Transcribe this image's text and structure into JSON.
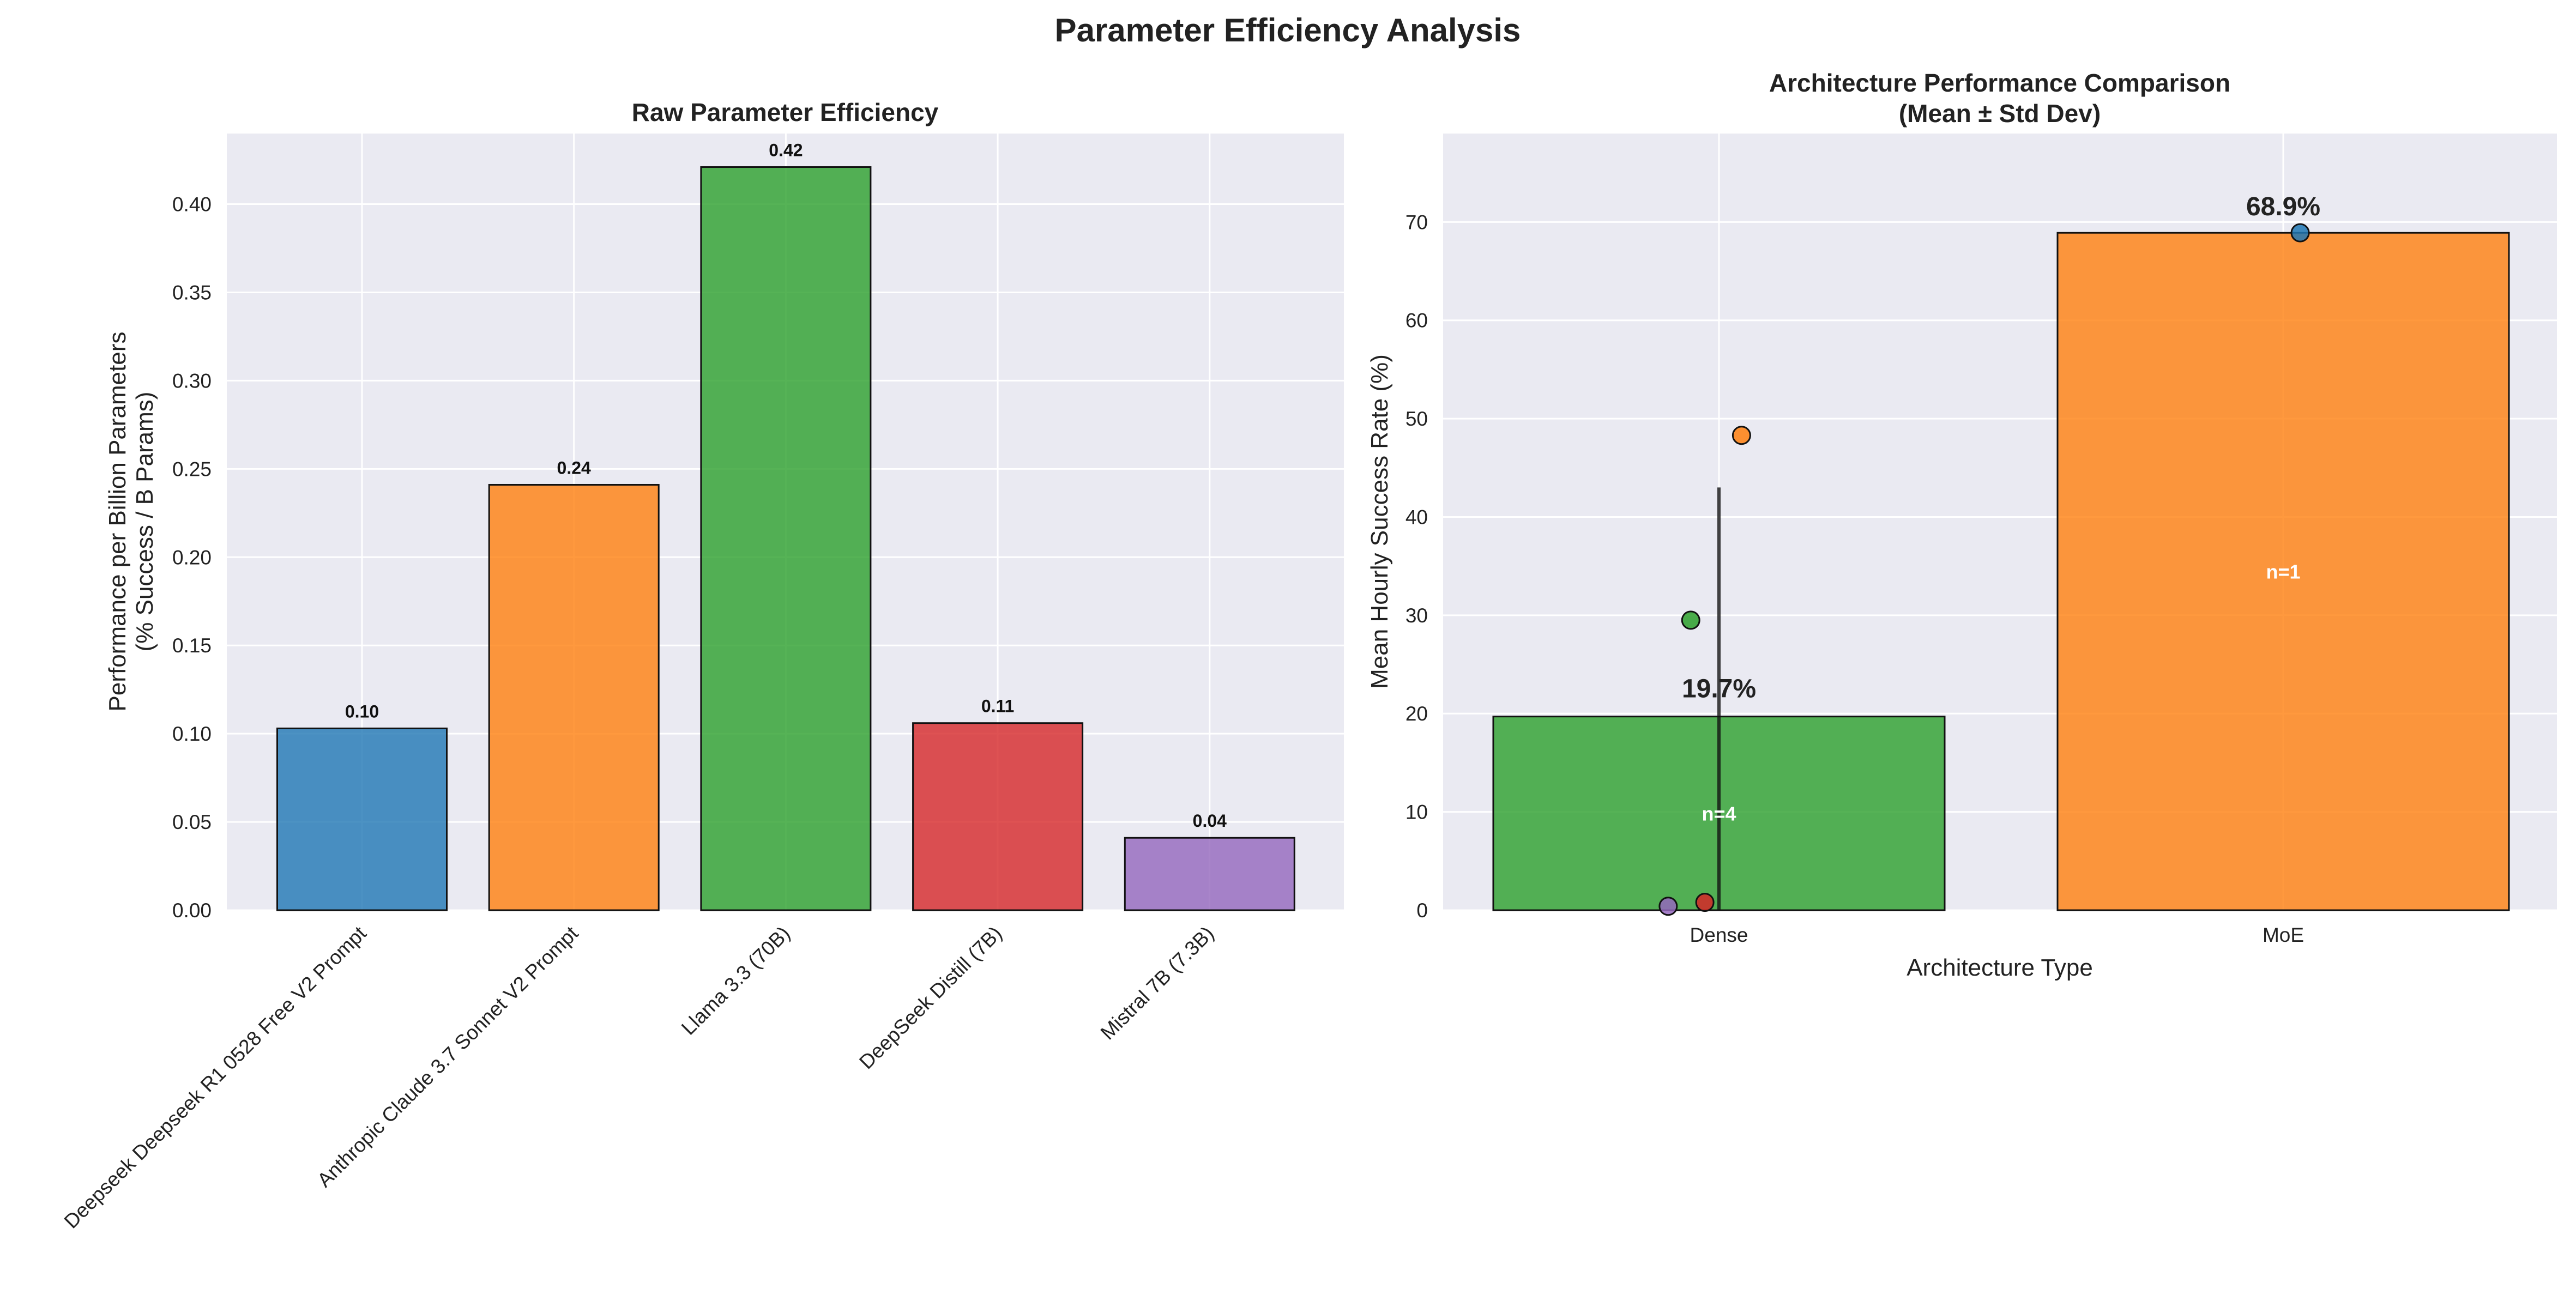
{
  "figure": {
    "title": "Parameter Efficiency Analysis"
  },
  "chart_data": [
    {
      "type": "bar",
      "title": "Raw Parameter Efficiency",
      "xlabel": "",
      "ylabel_line1": "Performance per Billion Parameters",
      "ylabel_line2": "(% Success / B Params)",
      "ylim": [
        0,
        0.44
      ],
      "yticks": [
        "0.00",
        "0.05",
        "0.10",
        "0.15",
        "0.20",
        "0.25",
        "0.30",
        "0.35",
        "0.40"
      ],
      "grid": true,
      "categories": [
        "Deepseek Deepseek R1 0528 Free V2 Prompt",
        "Anthropic Claude 3.7 Sonnet V2 Prompt",
        "Llama 3.3 (70B)",
        "DeepSeek Distill (7B)",
        "Mistral 7B (7.3B)"
      ],
      "values": [
        0.103,
        0.241,
        0.421,
        0.106,
        0.041
      ],
      "value_labels": [
        "0.10",
        "0.24",
        "0.42",
        "0.11",
        "0.04"
      ],
      "colors": [
        "#1f77b4",
        "#ff7f0e",
        "#2ca02c",
        "#d62728",
        "#9467bd"
      ]
    },
    {
      "type": "bar",
      "title_line1": "Architecture Performance Comparison",
      "title_line2": "(Mean ± Std Dev)",
      "xlabel": "Architecture Type",
      "ylabel": "Mean Hourly Success Rate (%)",
      "ylim": [
        0,
        79
      ],
      "yticks": [
        "0",
        "10",
        "20",
        "30",
        "40",
        "50",
        "60",
        "70"
      ],
      "grid": true,
      "categories": [
        "Dense",
        "MoE"
      ],
      "values": [
        19.7,
        68.9
      ],
      "value_labels": [
        "19.7%",
        "68.9%"
      ],
      "n_labels": [
        "n=4",
        "n=1"
      ],
      "error": [
        23.3,
        0
      ],
      "colors": [
        "#2ca02c",
        "#ff7f0e"
      ],
      "points": [
        {
          "category": "Dense",
          "offset": -0.09,
          "value": 0.4,
          "color": "#9467bd"
        },
        {
          "category": "Dense",
          "offset": -0.025,
          "value": 0.8,
          "color": "#d62728"
        },
        {
          "category": "Dense",
          "offset": -0.05,
          "value": 29.5,
          "color": "#2ca02c"
        },
        {
          "category": "Dense",
          "offset": 0.04,
          "value": 48.3,
          "color": "#ff7f0e"
        },
        {
          "category": "MoE",
          "offset": 0.03,
          "value": 68.9,
          "color": "#1f77b4"
        }
      ]
    }
  ]
}
